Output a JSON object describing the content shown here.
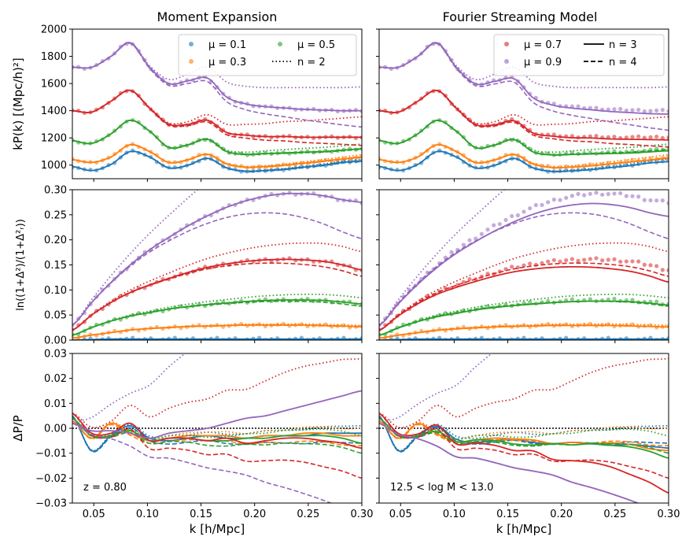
{
  "colors": {
    "mu_0_1": "#1f77b4",
    "mu_0_3": "#ff7f0e",
    "mu_0_5": "#2ca02c",
    "mu_0_7": "#d62728",
    "mu_0_9": "#9467bd"
  },
  "columns": [
    {
      "title": "Moment Expansion"
    },
    {
      "title": "Fourier Streaming Model"
    }
  ],
  "panel_annotations": {
    "left": "z = 0.80",
    "right": "12.5 < log M < 13.0"
  },
  "legends": {
    "left": [
      {
        "label": "μ = 0.1",
        "kind": "points",
        "color_key": "mu_0_1"
      },
      {
        "label": "μ = 0.3",
        "kind": "points",
        "color_key": "mu_0_3"
      },
      {
        "label": "μ = 0.5",
        "kind": "points",
        "color_key": "mu_0_5"
      },
      {
        "label": "n = 2",
        "kind": "dotted"
      }
    ],
    "right": [
      {
        "label": "μ = 0.7",
        "kind": "points",
        "color_key": "mu_0_7"
      },
      {
        "label": "μ = 0.9",
        "kind": "points",
        "color_key": "mu_0_9"
      },
      {
        "label": "n = 3",
        "kind": "solid"
      },
      {
        "label": "n = 4",
        "kind": "dashed"
      }
    ]
  },
  "chart_data": [
    {
      "type": "line",
      "panel": "top",
      "ylabel": "kP(k) [(Mpc/h)²]",
      "xlabel": "",
      "xlim": [
        0.03,
        0.3
      ],
      "ylim": [
        900,
        2000
      ],
      "xticks": [
        0.05,
        0.1,
        0.15,
        0.2,
        0.25,
        0.3
      ],
      "yticks": [
        1000,
        1200,
        1400,
        1600,
        1800,
        2000
      ],
      "ytick_labels": [
        "1000",
        "1200",
        "1400",
        "1600",
        "1800",
        "2000"
      ],
      "series": [
        {
          "name": "μ = 0.1",
          "color_key": "mu_0_1",
          "base": [
            990,
            960,
            1005,
            1100,
            1060,
            980,
            1000,
            1050,
            980,
            955,
            960,
            970,
            985,
            1000,
            1020,
            1030
          ],
          "n2_offset": [
            0,
            0,
            0,
            0,
            0,
            0,
            0,
            0,
            0,
            2,
            4,
            5,
            6,
            8,
            10,
            12
          ]
        },
        {
          "name": "μ = 0.3",
          "color_key": "mu_0_3",
          "base": [
            1040,
            1020,
            1060,
            1150,
            1100,
            1020,
            1040,
            1080,
            1010,
            985,
            990,
            1000,
            1015,
            1030,
            1045,
            1060
          ],
          "n2_offset": [
            0,
            0,
            0,
            0,
            0,
            0,
            0,
            0,
            2,
            4,
            6,
            8,
            10,
            12,
            14,
            16
          ]
        },
        {
          "name": "μ = 0.5",
          "color_key": "mu_0_5",
          "base": [
            1180,
            1160,
            1230,
            1330,
            1250,
            1130,
            1150,
            1190,
            1100,
            1080,
            1085,
            1090,
            1095,
            1100,
            1110,
            1120
          ],
          "n2_offset": [
            0,
            0,
            0,
            0,
            0,
            0,
            2,
            5,
            10,
            15,
            20,
            24,
            28,
            30,
            32,
            34
          ]
        },
        {
          "name": "μ = 0.7",
          "color_key": "mu_0_7",
          "base": [
            1400,
            1390,
            1470,
            1550,
            1420,
            1300,
            1300,
            1330,
            1240,
            1220,
            1210,
            1210,
            1205,
            1205,
            1205,
            1205
          ],
          "n2_offset": [
            0,
            0,
            0,
            0,
            5,
            10,
            20,
            40,
            60,
            80,
            95,
            110,
            120,
            130,
            140,
            150
          ]
        },
        {
          "name": "μ = 0.9",
          "color_key": "mu_0_9",
          "base": [
            1720,
            1720,
            1800,
            1900,
            1720,
            1600,
            1620,
            1640,
            1500,
            1450,
            1430,
            1420,
            1410,
            1405,
            1400,
            1400
          ],
          "n2_offset": [
            0,
            0,
            0,
            0,
            10,
            30,
            50,
            80,
            110,
            130,
            140,
            150,
            160,
            165,
            170,
            175
          ]
        }
      ]
    },
    {
      "type": "line",
      "panel": "middle",
      "ylabel": "ln((1+Δ²)/(1+Δ²ᵣ))",
      "xlabel": "",
      "xlim": [
        0.03,
        0.3
      ],
      "ylim": [
        0.0,
        0.3
      ],
      "xticks": [
        0.05,
        0.1,
        0.15,
        0.2,
        0.25,
        0.3
      ],
      "yticks": [
        0.0,
        0.05,
        0.1,
        0.15,
        0.2,
        0.25,
        0.3
      ],
      "ytick_labels": [
        "0.00",
        "0.05",
        "0.10",
        "0.15",
        "0.20",
        "0.25",
        "0.30"
      ],
      "series": [
        {
          "name": "μ = 0.1",
          "color_key": "mu_0_1",
          "base": [
            0.0,
            0.001,
            0.002,
            0.002,
            0.002,
            0.002,
            0.002,
            0.002,
            0.002,
            0.002,
            0.002,
            0.002,
            0.002,
            0.002,
            0.002,
            0.002
          ]
        },
        {
          "name": "μ = 0.3",
          "color_key": "mu_0_3",
          "base": [
            0.004,
            0.01,
            0.015,
            0.02,
            0.023,
            0.025,
            0.027,
            0.028,
            0.029,
            0.03,
            0.03,
            0.03,
            0.03,
            0.029,
            0.028,
            0.027
          ]
        },
        {
          "name": "μ = 0.5",
          "color_key": "mu_0_5",
          "base": [
            0.01,
            0.025,
            0.038,
            0.048,
            0.055,
            0.062,
            0.067,
            0.071,
            0.074,
            0.077,
            0.079,
            0.08,
            0.08,
            0.079,
            0.076,
            0.072
          ]
        },
        {
          "name": "μ = 0.7",
          "color_key": "mu_0_7",
          "base": [
            0.02,
            0.05,
            0.075,
            0.095,
            0.11,
            0.123,
            0.135,
            0.145,
            0.152,
            0.157,
            0.16,
            0.161,
            0.16,
            0.157,
            0.15,
            0.14
          ]
        },
        {
          "name": "μ = 0.9",
          "color_key": "mu_0_9",
          "base": [
            0.03,
            0.075,
            0.115,
            0.15,
            0.18,
            0.205,
            0.228,
            0.248,
            0.265,
            0.278,
            0.287,
            0.292,
            0.292,
            0.288,
            0.28,
            0.275
          ]
        }
      ]
    },
    {
      "type": "line",
      "panel": "bottom",
      "ylabel": "ΔP/P",
      "xlabel": "k [h/Mpc]",
      "xlim": [
        0.03,
        0.3
      ],
      "ylim": [
        -0.03,
        0.03
      ],
      "xticks": [
        0.05,
        0.1,
        0.15,
        0.2,
        0.25,
        0.3
      ],
      "xtick_labels": [
        "0.05",
        "0.10",
        "0.15",
        "0.20",
        "0.25",
        "0.30"
      ],
      "yticks": [
        -0.03,
        -0.02,
        -0.01,
        0.0,
        0.01,
        0.02,
        0.03
      ],
      "ytick_labels": [
        "−0.03",
        "−0.02",
        "−0.01",
        "0.00",
        "0.01",
        "0.02",
        "0.03"
      ],
      "reference_line": 0.0,
      "series": [
        {
          "name": "μ = 0.1",
          "color_key": "mu_0_1",
          "left_n3": [
            0.005,
            -0.009,
            -0.003,
            0.001,
            -0.004,
            -0.005,
            -0.004,
            -0.003,
            -0.004,
            -0.004,
            -0.003,
            -0.003,
            -0.003,
            -0.002,
            -0.002,
            -0.002
          ]
        },
        {
          "name": "μ = 0.3",
          "color_key": "mu_0_3",
          "left_n3": [
            0.003,
            -0.004,
            0.002,
            -0.002,
            -0.005,
            -0.004,
            -0.003,
            -0.003,
            -0.003,
            -0.004,
            -0.003,
            -0.003,
            -0.002,
            -0.002,
            -0.003,
            -0.003
          ]
        },
        {
          "name": "μ = 0.5",
          "color_key": "mu_0_5",
          "left_n3": [
            0.004,
            -0.003,
            -0.003,
            -0.001,
            -0.005,
            -0.004,
            -0.004,
            -0.005,
            -0.005,
            -0.004,
            -0.004,
            -0.003,
            -0.003,
            -0.003,
            -0.004,
            -0.006
          ]
        },
        {
          "name": "μ = 0.7",
          "color_key": "mu_0_7",
          "left_n3": [
            0.006,
            -0.002,
            -0.002,
            0.002,
            -0.005,
            -0.004,
            -0.004,
            -0.005,
            -0.004,
            -0.006,
            -0.005,
            -0.004,
            -0.004,
            -0.005,
            -0.006,
            -0.008
          ]
        },
        {
          "name": "μ = 0.9",
          "color_key": "mu_0_9",
          "left_n3": [
            0.002,
            -0.001,
            -0.001,
            -0.002,
            -0.004,
            -0.002,
            -0.001,
            0.0,
            0.002,
            0.004,
            0.005,
            0.007,
            0.009,
            0.011,
            0.013,
            0.015
          ]
        }
      ]
    }
  ]
}
